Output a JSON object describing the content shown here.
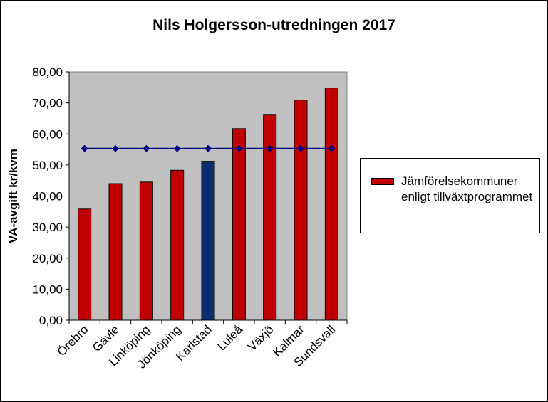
{
  "chart_data": {
    "type": "bar",
    "title": "Nils Holgersson-utredningen 2017",
    "ylabel": "VA-avgift kr/kvm",
    "xlabel": "",
    "ylim": [
      0,
      80
    ],
    "yticks": [
      "0,00",
      "10,00",
      "20,00",
      "30,00",
      "40,00",
      "50,00",
      "60,00",
      "70,00",
      "80,00"
    ],
    "categories": [
      "Örebro",
      "Gävle",
      "Linköping",
      "Jönköping",
      "Karlstad",
      "Luleå",
      "Växjö",
      "Kalmar",
      "Sundsvall"
    ],
    "series": [
      {
        "name": "Jämförelsekommuner enligt tillväxtprogrammet",
        "values": [
          35.8,
          44.0,
          44.5,
          48.3,
          51.2,
          61.7,
          66.3,
          70.9,
          74.8
        ],
        "colors": [
          "#c00000",
          "#c00000",
          "#c00000",
          "#c00000",
          "#0c2d6b",
          "#c00000",
          "#c00000",
          "#c00000",
          "#c00000"
        ]
      },
      {
        "values": [
          55.3,
          55.3,
          55.3,
          55.3,
          55.3,
          55.3,
          55.3,
          55.3,
          55.3
        ],
        "color": "#000080",
        "style": "line-with-diamonds"
      }
    ],
    "plot_background": "#c0c0c0",
    "grid": false,
    "legend_position": "right"
  }
}
